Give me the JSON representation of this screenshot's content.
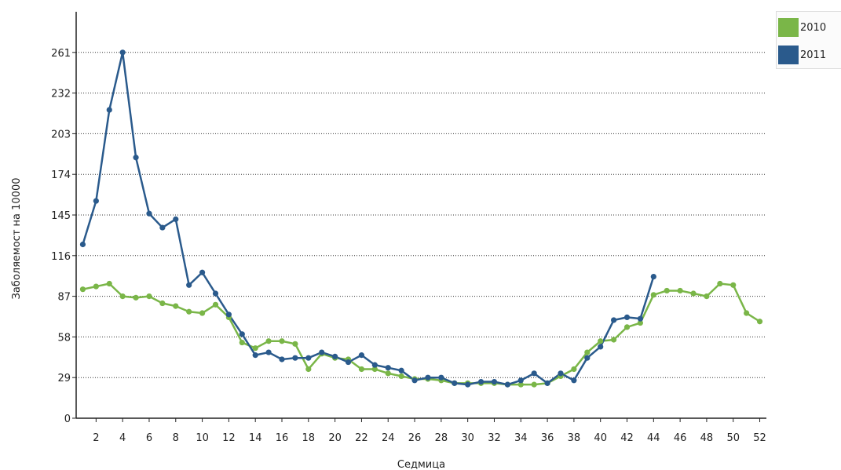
{
  "chart_data": {
    "type": "line",
    "xlabel": "Седмица",
    "ylabel": "Заболяемост на 10000",
    "ylim": [
      0,
      290
    ],
    "xlim": [
      0.5,
      52.5
    ],
    "yticks": [
      0,
      29,
      58,
      87,
      116,
      145,
      174,
      203,
      232,
      261
    ],
    "xticks": [
      2,
      4,
      6,
      8,
      10,
      12,
      14,
      16,
      18,
      20,
      22,
      24,
      26,
      28,
      30,
      32,
      34,
      36,
      38,
      40,
      42,
      44,
      46,
      48,
      50,
      52
    ],
    "grid": "horizontal dotted",
    "legend_position": "top-right",
    "series": [
      {
        "name": "2010",
        "color": "#7ab648",
        "x": [
          1,
          2,
          3,
          4,
          5,
          6,
          7,
          8,
          9,
          10,
          11,
          12,
          13,
          14,
          15,
          16,
          17,
          18,
          19,
          20,
          21,
          22,
          23,
          24,
          25,
          26,
          27,
          28,
          29,
          30,
          31,
          32,
          33,
          34,
          35,
          36,
          37,
          38,
          39,
          40,
          41,
          42,
          43,
          44,
          45,
          46,
          47,
          48,
          49,
          50,
          51,
          52
        ],
        "values": [
          92,
          94,
          96,
          87,
          86,
          87,
          82,
          80,
          76,
          75,
          81,
          72,
          54,
          50,
          55,
          55,
          53,
          35,
          46,
          43,
          42,
          35,
          35,
          32,
          30,
          28,
          28,
          27,
          25,
          25,
          25,
          25,
          24,
          24,
          24,
          25,
          30,
          35,
          47,
          55,
          56,
          65,
          68,
          88,
          91,
          91,
          89,
          87,
          96,
          95,
          75,
          69
        ]
      },
      {
        "name": "2011",
        "color": "#2a5a8c",
        "x": [
          1,
          2,
          3,
          4,
          5,
          6,
          7,
          8,
          9,
          10,
          11,
          12,
          13,
          14,
          15,
          16,
          17,
          18,
          19,
          20,
          21,
          22,
          23,
          24,
          25,
          26,
          27,
          28,
          29,
          30,
          31,
          32,
          33,
          34,
          35,
          36,
          37,
          38,
          39,
          40,
          41,
          42,
          43,
          44
        ],
        "values": [
          124,
          155,
          220,
          261,
          186,
          146,
          136,
          142,
          95,
          104,
          89,
          74,
          60,
          45,
          47,
          42,
          43,
          43,
          47,
          44,
          40,
          45,
          38,
          36,
          34,
          27,
          29,
          29,
          25,
          24,
          26,
          26,
          24,
          27,
          32,
          25,
          32,
          27,
          43,
          51,
          70,
          72,
          71,
          101
        ]
      }
    ]
  }
}
